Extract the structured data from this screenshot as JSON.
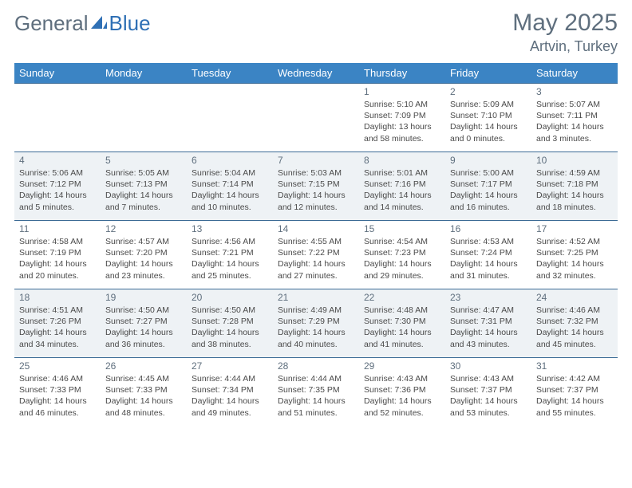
{
  "brand": {
    "part1": "General",
    "part2": "Blue"
  },
  "title": "May 2025",
  "location": "Artvin, Turkey",
  "colors": {
    "header_bg": "#3b84c4",
    "header_text": "#ffffff",
    "border": "#3b6b95",
    "alt_row": "#eef2f5",
    "text_muted": "#5f6f7e",
    "text_body": "#4a4a4a",
    "logo_accent": "#2f70b5"
  },
  "weekdays": [
    "Sunday",
    "Monday",
    "Tuesday",
    "Wednesday",
    "Thursday",
    "Friday",
    "Saturday"
  ],
  "weeks": [
    {
      "alt": false,
      "days": [
        null,
        null,
        null,
        null,
        {
          "n": "1",
          "sr": "5:10 AM",
          "ss": "7:09 PM",
          "dl": "13 hours and 58 minutes."
        },
        {
          "n": "2",
          "sr": "5:09 AM",
          "ss": "7:10 PM",
          "dl": "14 hours and 0 minutes."
        },
        {
          "n": "3",
          "sr": "5:07 AM",
          "ss": "7:11 PM",
          "dl": "14 hours and 3 minutes."
        }
      ]
    },
    {
      "alt": true,
      "days": [
        {
          "n": "4",
          "sr": "5:06 AM",
          "ss": "7:12 PM",
          "dl": "14 hours and 5 minutes."
        },
        {
          "n": "5",
          "sr": "5:05 AM",
          "ss": "7:13 PM",
          "dl": "14 hours and 7 minutes."
        },
        {
          "n": "6",
          "sr": "5:04 AM",
          "ss": "7:14 PM",
          "dl": "14 hours and 10 minutes."
        },
        {
          "n": "7",
          "sr": "5:03 AM",
          "ss": "7:15 PM",
          "dl": "14 hours and 12 minutes."
        },
        {
          "n": "8",
          "sr": "5:01 AM",
          "ss": "7:16 PM",
          "dl": "14 hours and 14 minutes."
        },
        {
          "n": "9",
          "sr": "5:00 AM",
          "ss": "7:17 PM",
          "dl": "14 hours and 16 minutes."
        },
        {
          "n": "10",
          "sr": "4:59 AM",
          "ss": "7:18 PM",
          "dl": "14 hours and 18 minutes."
        }
      ]
    },
    {
      "alt": false,
      "days": [
        {
          "n": "11",
          "sr": "4:58 AM",
          "ss": "7:19 PM",
          "dl": "14 hours and 20 minutes."
        },
        {
          "n": "12",
          "sr": "4:57 AM",
          "ss": "7:20 PM",
          "dl": "14 hours and 23 minutes."
        },
        {
          "n": "13",
          "sr": "4:56 AM",
          "ss": "7:21 PM",
          "dl": "14 hours and 25 minutes."
        },
        {
          "n": "14",
          "sr": "4:55 AM",
          "ss": "7:22 PM",
          "dl": "14 hours and 27 minutes."
        },
        {
          "n": "15",
          "sr": "4:54 AM",
          "ss": "7:23 PM",
          "dl": "14 hours and 29 minutes."
        },
        {
          "n": "16",
          "sr": "4:53 AM",
          "ss": "7:24 PM",
          "dl": "14 hours and 31 minutes."
        },
        {
          "n": "17",
          "sr": "4:52 AM",
          "ss": "7:25 PM",
          "dl": "14 hours and 32 minutes."
        }
      ]
    },
    {
      "alt": true,
      "days": [
        {
          "n": "18",
          "sr": "4:51 AM",
          "ss": "7:26 PM",
          "dl": "14 hours and 34 minutes."
        },
        {
          "n": "19",
          "sr": "4:50 AM",
          "ss": "7:27 PM",
          "dl": "14 hours and 36 minutes."
        },
        {
          "n": "20",
          "sr": "4:50 AM",
          "ss": "7:28 PM",
          "dl": "14 hours and 38 minutes."
        },
        {
          "n": "21",
          "sr": "4:49 AM",
          "ss": "7:29 PM",
          "dl": "14 hours and 40 minutes."
        },
        {
          "n": "22",
          "sr": "4:48 AM",
          "ss": "7:30 PM",
          "dl": "14 hours and 41 minutes."
        },
        {
          "n": "23",
          "sr": "4:47 AM",
          "ss": "7:31 PM",
          "dl": "14 hours and 43 minutes."
        },
        {
          "n": "24",
          "sr": "4:46 AM",
          "ss": "7:32 PM",
          "dl": "14 hours and 45 minutes."
        }
      ]
    },
    {
      "alt": false,
      "days": [
        {
          "n": "25",
          "sr": "4:46 AM",
          "ss": "7:33 PM",
          "dl": "14 hours and 46 minutes."
        },
        {
          "n": "26",
          "sr": "4:45 AM",
          "ss": "7:33 PM",
          "dl": "14 hours and 48 minutes."
        },
        {
          "n": "27",
          "sr": "4:44 AM",
          "ss": "7:34 PM",
          "dl": "14 hours and 49 minutes."
        },
        {
          "n": "28",
          "sr": "4:44 AM",
          "ss": "7:35 PM",
          "dl": "14 hours and 51 minutes."
        },
        {
          "n": "29",
          "sr": "4:43 AM",
          "ss": "7:36 PM",
          "dl": "14 hours and 52 minutes."
        },
        {
          "n": "30",
          "sr": "4:43 AM",
          "ss": "7:37 PM",
          "dl": "14 hours and 53 minutes."
        },
        {
          "n": "31",
          "sr": "4:42 AM",
          "ss": "7:37 PM",
          "dl": "14 hours and 55 minutes."
        }
      ]
    }
  ],
  "labels": {
    "sunrise": "Sunrise: ",
    "sunset": "Sunset: ",
    "daylight": "Daylight: "
  }
}
